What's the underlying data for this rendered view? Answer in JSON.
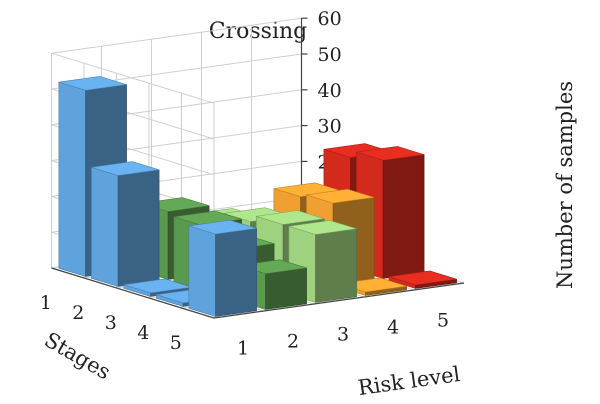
{
  "chart_data": {
    "type": "bar3d",
    "title": "Crossing",
    "xlabel": "Risk level",
    "ylabel": "Stages",
    "zlabel": "Number of samples",
    "x_categories": [
      "1",
      "2",
      "3",
      "4",
      "5"
    ],
    "y_categories": [
      "1",
      "2",
      "3",
      "4",
      "5"
    ],
    "zlim": [
      0,
      60
    ],
    "z_ticks": [
      "0",
      "10",
      "20",
      "30",
      "40",
      "50",
      "60"
    ],
    "grid": true,
    "colors_by_risk_level": {
      "1": "#5fa3dd",
      "2": "#5a9a4e",
      "3": "#9fd27f",
      "4": "#f0a030",
      "5": "#d42a1e"
    },
    "bars": [
      {
        "risk_level": 1,
        "stage": 1,
        "value": 52
      },
      {
        "risk_level": 1,
        "stage": 2,
        "value": 31
      },
      {
        "risk_level": 1,
        "stage": 3,
        "value": 1
      },
      {
        "risk_level": 1,
        "stage": 4,
        "value": 1
      },
      {
        "risk_level": 1,
        "stage": 5,
        "value": 23
      },
      {
        "risk_level": 2,
        "stage": 2,
        "value": 19
      },
      {
        "risk_level": 2,
        "stage": 3,
        "value": 18
      },
      {
        "risk_level": 2,
        "stage": 4,
        "value": 14
      },
      {
        "risk_level": 2,
        "stage": 5,
        "value": 10
      },
      {
        "risk_level": 3,
        "stage": 2,
        "value": 14
      },
      {
        "risk_level": 3,
        "stage": 3,
        "value": 17
      },
      {
        "risk_level": 3,
        "stage": 4,
        "value": 19
      },
      {
        "risk_level": 3,
        "stage": 5,
        "value": 19
      },
      {
        "risk_level": 4,
        "stage": 3,
        "value": 22
      },
      {
        "risk_level": 4,
        "stage": 4,
        "value": 23
      },
      {
        "risk_level": 4,
        "stage": 5,
        "value": 1
      },
      {
        "risk_level": 5,
        "stage": 3,
        "value": 31
      },
      {
        "risk_level": 5,
        "stage": 4,
        "value": 33
      },
      {
        "risk_level": 5,
        "stage": 5,
        "value": 1
      }
    ]
  }
}
